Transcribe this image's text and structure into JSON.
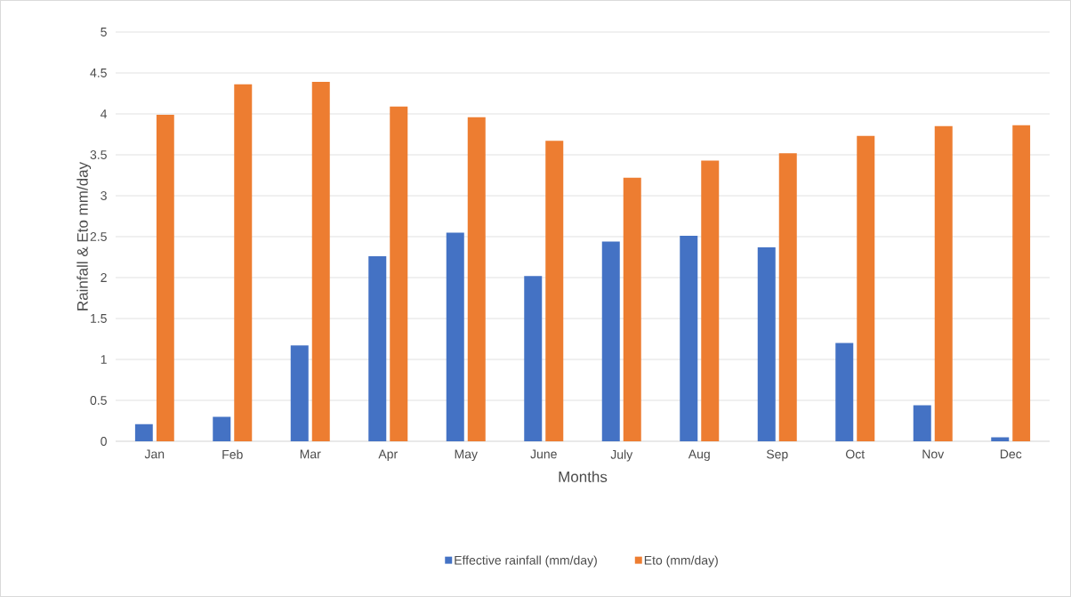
{
  "chart_data": {
    "type": "bar",
    "xlabel": "Months",
    "ylabel": "Rainfall & Eto mm/day",
    "categories": [
      "Jan",
      "Feb",
      "Mar",
      "Apr",
      "May",
      "June",
      "July",
      "Aug",
      "Sep",
      "Oct",
      "Nov",
      "Dec"
    ],
    "series": [
      {
        "name": "Effective rainfall (mm/day)",
        "color": "#4472c4",
        "values": [
          0.21,
          0.3,
          1.17,
          2.26,
          2.55,
          2.02,
          2.44,
          2.51,
          2.37,
          1.2,
          0.44,
          0.05
        ]
      },
      {
        "name": "Eto (mm/day)",
        "color": "#ed7d31",
        "values": [
          3.99,
          4.36,
          4.39,
          4.09,
          3.96,
          3.67,
          3.22,
          3.43,
          3.52,
          3.73,
          3.85,
          3.86
        ]
      }
    ],
    "ylim": [
      0,
      5
    ],
    "yticks": [
      0,
      0.5,
      1,
      1.5,
      2,
      2.5,
      3,
      3.5,
      4,
      4.5,
      5
    ],
    "grid": "y",
    "legend": "bottom"
  }
}
